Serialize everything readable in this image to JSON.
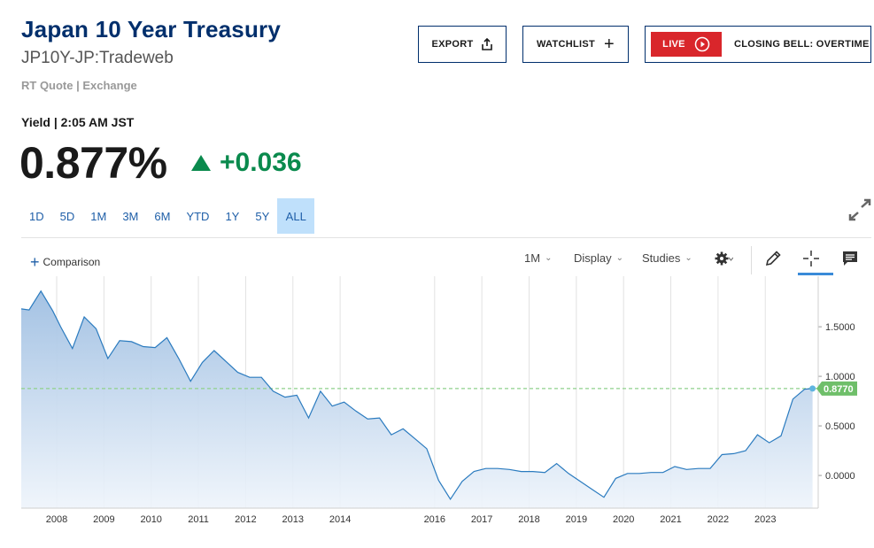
{
  "header": {
    "title": "Japan 10 Year Treasury",
    "subtitle": "JP10Y-JP:Tradeweb",
    "rt_quote": "RT Quote | Exchange"
  },
  "actions": {
    "export_label": "EXPORT",
    "watchlist_label": "WATCHLIST",
    "live_label": "LIVE",
    "closing_bell_label": "CLOSING BELL: OVERTIME",
    "live_color": "#d9262b",
    "border_color": "#002f6c"
  },
  "quote": {
    "yield_label": "Yield | 2:05 AM JST",
    "price": "0.877%",
    "change": "+0.036",
    "change_color": "#0a8a4d"
  },
  "ranges": {
    "items": [
      "1D",
      "5D",
      "1M",
      "3M",
      "6M",
      "YTD",
      "1Y",
      "5Y",
      "ALL"
    ],
    "active": "ALL"
  },
  "toolbar": {
    "comparison_label": "Comparison",
    "interval_label": "1M",
    "display_label": "Display",
    "studies_label": "Studies",
    "icons": [
      "gear-icon",
      "pencil-icon",
      "crosshair-icon",
      "comment-icon"
    ]
  },
  "chart_data": {
    "type": "area",
    "x_tick_labels": [
      "2008",
      "2009",
      "2010",
      "2011",
      "2012",
      "2013",
      "2014",
      "2016",
      "2017",
      "2018",
      "2019",
      "2020",
      "2021",
      "2022",
      "2023"
    ],
    "y_tick_labels": [
      "1.5000",
      "1.0000",
      "0.5000",
      "0.0000"
    ],
    "ylim": [
      -0.33,
      2.01
    ],
    "last_value_label": "0.8770",
    "last_value": 0.877,
    "reference_line": 0.877,
    "line_color": "#2b7bbf",
    "fill_color": "#a9c7e6",
    "reference_color": "#8fd18b",
    "x": [
      "2007-04",
      "2007-06",
      "2007-09",
      "2007-12",
      "2008-02",
      "2008-05",
      "2008-08",
      "2008-11",
      "2009-02",
      "2009-05",
      "2009-08",
      "2009-11",
      "2010-02",
      "2010-05",
      "2010-08",
      "2010-11",
      "2011-02",
      "2011-05",
      "2011-08",
      "2011-11",
      "2012-02",
      "2012-05",
      "2012-08",
      "2012-11",
      "2013-02",
      "2013-05",
      "2013-08",
      "2013-11",
      "2014-02",
      "2014-05",
      "2014-08",
      "2014-11",
      "2015-02",
      "2015-05",
      "2015-08",
      "2015-11",
      "2016-02",
      "2016-05",
      "2016-08",
      "2016-11",
      "2017-02",
      "2017-05",
      "2017-08",
      "2017-11",
      "2018-02",
      "2018-05",
      "2018-08",
      "2018-11",
      "2019-02",
      "2019-05",
      "2019-08",
      "2019-11",
      "2020-02",
      "2020-05",
      "2020-08",
      "2020-11",
      "2021-02",
      "2021-05",
      "2021-08",
      "2021-11",
      "2022-02",
      "2022-05",
      "2022-08",
      "2022-11",
      "2023-02",
      "2023-05",
      "2023-08",
      "2023-11",
      "2024-01"
    ],
    "y": [
      1.68,
      1.67,
      1.86,
      1.66,
      1.5,
      1.28,
      1.6,
      1.48,
      1.18,
      1.36,
      1.35,
      1.3,
      1.29,
      1.39,
      1.18,
      0.95,
      1.14,
      1.26,
      1.15,
      1.04,
      0.99,
      0.99,
      0.85,
      0.79,
      0.81,
      0.58,
      0.85,
      0.7,
      0.74,
      0.65,
      0.57,
      0.58,
      0.41,
      0.47,
      0.37,
      0.27,
      -0.05,
      -0.24,
      -0.06,
      0.04,
      0.07,
      0.07,
      0.06,
      0.04,
      0.04,
      0.03,
      0.12,
      0.02,
      -0.06,
      -0.14,
      -0.22,
      -0.03,
      0.02,
      0.02,
      0.03,
      0.03,
      0.09,
      0.06,
      0.07,
      0.07,
      0.21,
      0.22,
      0.25,
      0.41,
      0.33,
      0.4,
      0.77,
      0.87,
      0.877
    ]
  }
}
